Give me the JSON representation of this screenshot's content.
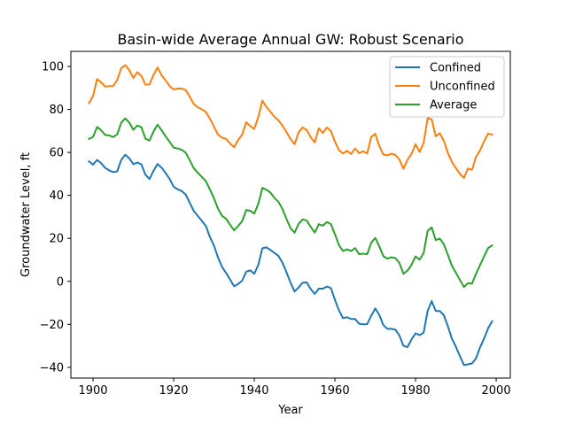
{
  "chart_data": {
    "type": "line",
    "title": "Basin-wide Average Annual GW: Robust Scenario",
    "xlabel": "Year",
    "ylabel": "Groundwater Level, ft",
    "xlim": [
      1894.5,
      2003.5
    ],
    "ylim": [
      -45,
      107
    ],
    "xticks": [
      1900,
      1920,
      1940,
      1960,
      1980,
      2000
    ],
    "yticks": [
      -40,
      -20,
      0,
      20,
      40,
      60,
      80,
      100
    ],
    "grid": false,
    "legend_position": "top-right",
    "x": [
      1899,
      1900,
      1901,
      1902,
      1903,
      1904,
      1905,
      1906,
      1907,
      1908,
      1909,
      1910,
      1911,
      1912,
      1913,
      1914,
      1915,
      1916,
      1917,
      1918,
      1919,
      1920,
      1921,
      1922,
      1923,
      1924,
      1925,
      1926,
      1927,
      1928,
      1929,
      1930,
      1931,
      1932,
      1933,
      1934,
      1935,
      1936,
      1937,
      1938,
      1939,
      1940,
      1941,
      1942,
      1943,
      1944,
      1945,
      1946,
      1947,
      1948,
      1949,
      1950,
      1951,
      1952,
      1953,
      1954,
      1955,
      1956,
      1957,
      1958,
      1959,
      1960,
      1961,
      1962,
      1963,
      1964,
      1965,
      1966,
      1967,
      1968,
      1969,
      1970,
      1971,
      1972,
      1973,
      1974,
      1975,
      1976,
      1977,
      1978,
      1979,
      1980,
      1981,
      1982,
      1983,
      1984,
      1985,
      1986,
      1987,
      1988,
      1989,
      1990,
      1991,
      1992,
      1993,
      1994,
      1995,
      1996,
      1997,
      1998,
      1999
    ],
    "series": [
      {
        "name": "Confined",
        "color": "#1f77b4",
        "values": [
          55.8,
          54.3,
          56.5,
          55.0,
          52.8,
          51.6,
          50.8,
          51.2,
          56.5,
          58.9,
          57.2,
          54.5,
          55.3,
          54.4,
          49.6,
          47.6,
          51.4,
          54.6,
          52.9,
          50.4,
          47.6,
          44.0,
          42.8,
          42.0,
          40.3,
          36.5,
          32.7,
          30.4,
          28.1,
          25.7,
          20.6,
          16.6,
          11.1,
          6.7,
          3.9,
          0.8,
          -2.3,
          -1.2,
          0.3,
          4.5,
          5.1,
          3.5,
          7.7,
          15.4,
          15.8,
          14.6,
          13.2,
          11.8,
          8.6,
          4.2,
          -0.7,
          -4.7,
          -2.8,
          -0.6,
          -0.5,
          -3.6,
          -5.8,
          -3.4,
          -3.4,
          -2.4,
          -3.1,
          -8.6,
          -13.5,
          -17.1,
          -16.7,
          -17.5,
          -17.5,
          -19.7,
          -20.0,
          -19.9,
          -16.0,
          -12.6,
          -15.6,
          -20.3,
          -22.1,
          -22.1,
          -22.5,
          -25.2,
          -30.0,
          -30.6,
          -27.0,
          -24.2,
          -25.0,
          -23.9,
          -13.7,
          -9.2,
          -13.8,
          -13.8,
          -15.7,
          -20.8,
          -26.6,
          -30.4,
          -34.8,
          -38.9,
          -38.6,
          -38.2,
          -35.8,
          -30.7,
          -26.6,
          -21.8,
          -18.6
        ]
      },
      {
        "name": "Unconfined",
        "color": "#ff7f0e",
        "values": [
          82.9,
          86.3,
          94.1,
          92.6,
          90.6,
          90.8,
          90.9,
          93.7,
          99.2,
          100.6,
          98.2,
          94.6,
          97.3,
          95.5,
          91.5,
          91.6,
          96.0,
          99.5,
          95.9,
          93.5,
          90.8,
          89.3,
          89.7,
          89.7,
          88.9,
          85.9,
          82.4,
          81.0,
          80.0,
          78.8,
          75.6,
          71.9,
          68.3,
          66.8,
          66.3,
          64.1,
          62.4,
          65.8,
          68.3,
          74.0,
          72.2,
          70.9,
          76.5,
          84.1,
          81.1,
          78.9,
          76.5,
          74.9,
          72.4,
          69.4,
          66.1,
          63.8,
          69.4,
          71.6,
          70.4,
          67.0,
          64.6,
          71.2,
          69.0,
          71.6,
          69.9,
          65.0,
          61.0,
          59.5,
          60.7,
          59.3,
          61.8,
          59.6,
          60.5,
          59.5,
          67.2,
          68.6,
          63.0,
          59.0,
          58.6,
          59.4,
          58.8,
          56.7,
          52.4,
          56.6,
          59.3,
          63.8,
          60.2,
          64.4,
          75.9,
          75.4,
          67.5,
          68.9,
          65.4,
          59.8,
          55.6,
          52.7,
          50.0,
          48.1,
          52.5,
          51.9,
          57.9,
          60.9,
          65.2,
          68.7,
          68.3
        ]
      },
      {
        "name": "Average",
        "color": "#2ca02c",
        "values": [
          66.3,
          67.2,
          71.8,
          70.3,
          68.1,
          67.9,
          67.1,
          68.4,
          73.8,
          75.8,
          73.8,
          70.5,
          72.5,
          71.7,
          66.4,
          65.5,
          69.7,
          72.9,
          70.3,
          67.5,
          64.9,
          62.2,
          61.8,
          61.2,
          59.8,
          56.3,
          52.6,
          50.5,
          48.6,
          46.6,
          42.7,
          38.6,
          33.8,
          30.5,
          29.1,
          26.3,
          23.7,
          25.8,
          28.0,
          33.2,
          32.8,
          31.5,
          36.1,
          43.5,
          42.6,
          41.3,
          38.8,
          37.0,
          33.6,
          29.0,
          24.7,
          22.6,
          26.8,
          28.8,
          28.3,
          25.3,
          22.7,
          26.6,
          25.9,
          27.6,
          26.6,
          21.9,
          16.8,
          14.1,
          14.9,
          14.1,
          15.5,
          12.6,
          12.9,
          12.6,
          18.0,
          20.2,
          16.3,
          11.7,
          10.6,
          11.2,
          10.8,
          8.5,
          3.5,
          5.0,
          7.7,
          11.6,
          10.1,
          13.1,
          23.5,
          25.1,
          19.2,
          19.9,
          17.3,
          12.4,
          7.3,
          4.0,
          0.7,
          -2.6,
          -0.8,
          -1.1,
          3.5,
          7.6,
          11.6,
          15.5,
          16.7
        ]
      }
    ]
  }
}
